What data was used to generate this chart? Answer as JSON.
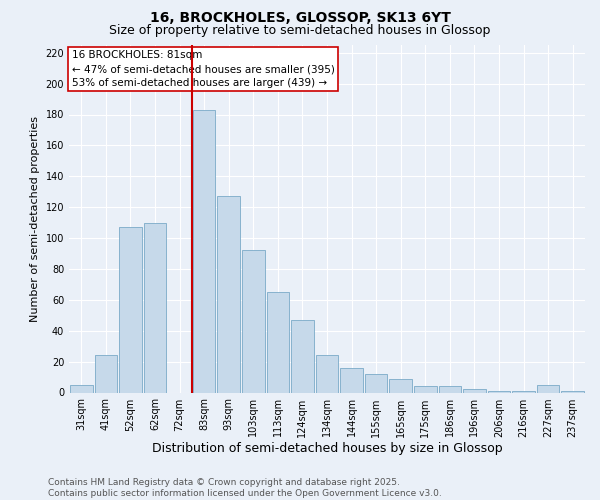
{
  "title_line1": "16, BROCKHOLES, GLOSSOP, SK13 6YT",
  "title_line2": "Size of property relative to semi-detached houses in Glossop",
  "xlabel": "Distribution of semi-detached houses by size in Glossop",
  "ylabel": "Number of semi-detached properties",
  "categories": [
    "31sqm",
    "41sqm",
    "52sqm",
    "62sqm",
    "72sqm",
    "83sqm",
    "93sqm",
    "103sqm",
    "113sqm",
    "124sqm",
    "134sqm",
    "144sqm",
    "155sqm",
    "165sqm",
    "175sqm",
    "186sqm",
    "196sqm",
    "206sqm",
    "216sqm",
    "227sqm",
    "237sqm"
  ],
  "values": [
    5,
    24,
    107,
    110,
    0,
    183,
    127,
    92,
    65,
    47,
    24,
    16,
    12,
    9,
    4,
    4,
    2,
    1,
    1,
    5,
    1
  ],
  "bar_color": "#c6d9ea",
  "bar_edge_color": "#7aaac8",
  "vline_color": "#cc0000",
  "vline_index": 4.5,
  "annotation_text": "16 BROCKHOLES: 81sqm\n← 47% of semi-detached houses are smaller (395)\n53% of semi-detached houses are larger (439) →",
  "annotation_box_facecolor": "#ffffff",
  "annotation_box_edgecolor": "#cc0000",
  "ylim": [
    0,
    225
  ],
  "yticks": [
    0,
    20,
    40,
    60,
    80,
    100,
    120,
    140,
    160,
    180,
    200,
    220
  ],
  "background_color": "#eaf0f8",
  "grid_color": "#ffffff",
  "footer": "Contains HM Land Registry data © Crown copyright and database right 2025.\nContains public sector information licensed under the Open Government Licence v3.0.",
  "title_fontsize": 10,
  "subtitle_fontsize": 9,
  "xlabel_fontsize": 9,
  "ylabel_fontsize": 8,
  "tick_fontsize": 7,
  "annotation_fontsize": 7.5,
  "footer_fontsize": 6.5
}
